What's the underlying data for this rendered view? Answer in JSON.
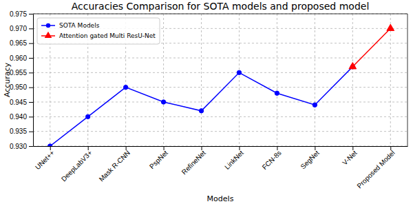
{
  "chart_data": {
    "type": "line",
    "title": "Accuracies Comparison for SOTA models and proposed model",
    "x_label": "Models",
    "y_label": "Accuracy",
    "categories": [
      "UNet++",
      "DeepLabV3+",
      "Mask R-CNN",
      "PspNet",
      "RefineNet",
      "LinkNet",
      "FCN-8s",
      "SegNet",
      "V-Net",
      "Proposed Model"
    ],
    "series": [
      {
        "name": "SOTA Models",
        "color": "#0000ff",
        "marker": "circle",
        "line_style": "solid",
        "values": [
          0.93,
          0.94,
          0.95,
          0.945,
          0.942,
          0.955,
          0.948,
          0.944,
          0.957,
          null
        ]
      },
      {
        "name": "Attention gated Multi ResU-Net",
        "color": "#ff0000",
        "marker": "triangle",
        "line_style": "solid",
        "values": [
          null,
          null,
          null,
          null,
          null,
          null,
          null,
          null,
          0.957,
          0.97
        ]
      }
    ],
    "ylim": [
      0.93,
      0.975
    ],
    "yticks": [
      {
        "value": 0.93,
        "label": "0.930"
      },
      {
        "value": 0.935,
        "label": "0.935"
      },
      {
        "value": 0.94,
        "label": "0.940"
      },
      {
        "value": 0.945,
        "label": "0.945"
      },
      {
        "value": 0.95,
        "label": "0.950"
      },
      {
        "value": 0.955,
        "label": "0.955"
      },
      {
        "value": 0.96,
        "label": "0.960"
      },
      {
        "value": 0.965,
        "label": "0.965"
      },
      {
        "value": 0.97,
        "label": "0.970"
      },
      {
        "value": 0.975,
        "label": "0.975"
      }
    ],
    "grid": true,
    "legend": "upper left"
  }
}
